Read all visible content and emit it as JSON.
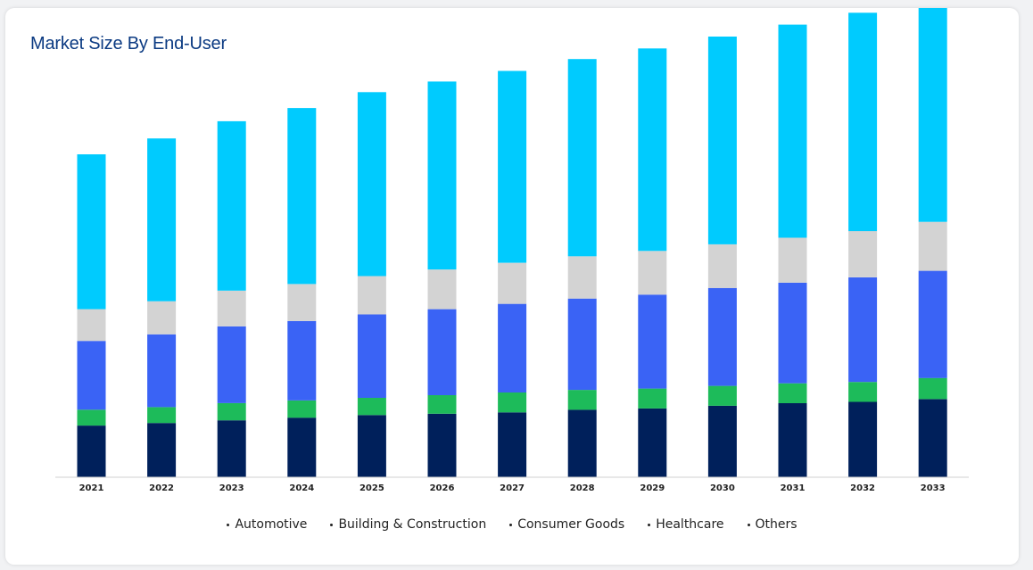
{
  "chart_data": {
    "type": "bar",
    "stacked": true,
    "title": "Market Size By End-User",
    "categories": [
      "2021",
      "2022",
      "2023",
      "2024",
      "2025",
      "2026",
      "2027",
      "2028",
      "2029",
      "2030",
      "2031",
      "2032",
      "2033"
    ],
    "series": [
      {
        "name": "Automotive",
        "color": "#00205b",
        "values": [
          39,
          41,
          43,
          45,
          47,
          48,
          49,
          51,
          52,
          54,
          56,
          57,
          59
        ]
      },
      {
        "name": "Building & Construction",
        "color": "#1dbb5a",
        "values": [
          12,
          12,
          13,
          13,
          13,
          14,
          15,
          15,
          15,
          15,
          15,
          15,
          16
        ]
      },
      {
        "name": "Consumer Goods",
        "color": "#3a63f5",
        "values": [
          52,
          55,
          58,
          60,
          63,
          65,
          67,
          69,
          71,
          74,
          76,
          79,
          81
        ]
      },
      {
        "name": "Healthcare",
        "color": "#d3d3d3",
        "values": [
          24,
          25,
          27,
          28,
          29,
          30,
          31,
          32,
          33,
          33,
          34,
          35,
          37
        ]
      },
      {
        "name": "Others",
        "color": "#00cbfe",
        "values": [
          117,
          123,
          128,
          133,
          139,
          142,
          145,
          149,
          153,
          157,
          161,
          165,
          170
        ]
      }
    ],
    "legend_position": "bottom",
    "grid": false
  }
}
